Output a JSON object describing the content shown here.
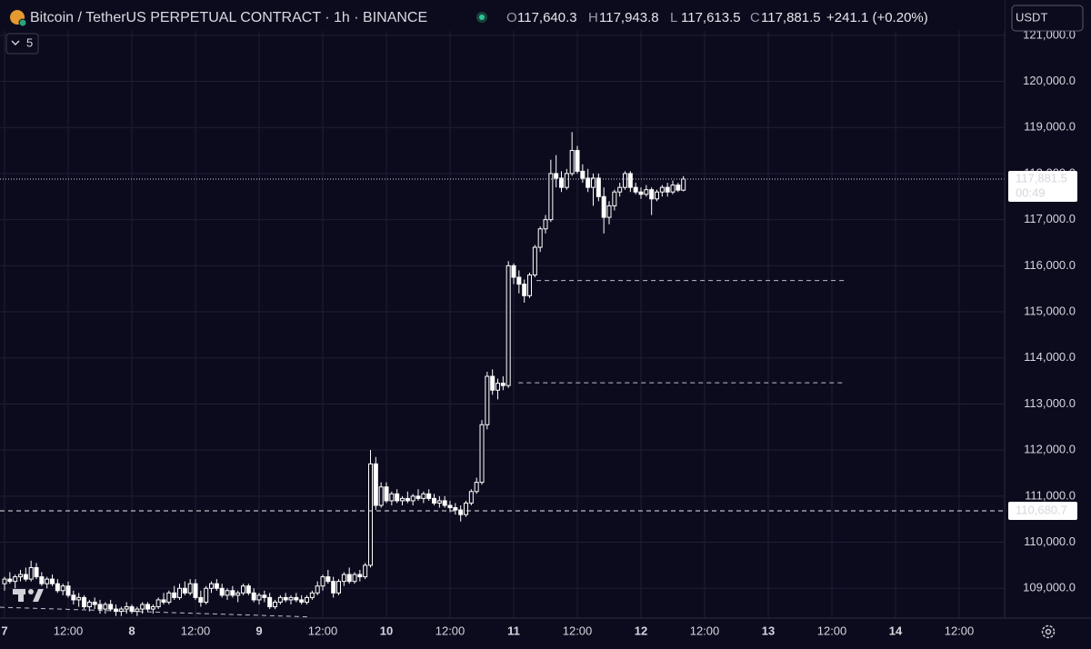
{
  "chart_data": {
    "type": "candlestick",
    "title": "Bitcoin / TetherUS PERPETUAL CONTRACT · 1h · BINANCE",
    "ohlc_header": [
      {
        "label": "O",
        "value": "117,640.3"
      },
      {
        "label": "H",
        "value": "117,943.8"
      },
      {
        "label": "L",
        "value": "117,613.5"
      },
      {
        "label": "C",
        "value": "117,881.5"
      }
    ],
    "change": "+241.1 (+0.20%)",
    "currency": "USDT",
    "indicator_count": "5",
    "countdown": "00:49",
    "last_price": {
      "value": 117881.5,
      "label": "117,881.5"
    },
    "alert_line": {
      "value": 110680.7,
      "label": "110,680.7"
    },
    "price_lines": [
      {
        "price": 115680,
        "from": 100.3,
        "to": 158.6
      },
      {
        "price": 113460,
        "from": 96.9,
        "to": 158.2
      }
    ],
    "trend_line": {
      "x": [
        -0.86,
        57.4
      ],
      "y": [
        108590,
        108380
      ]
    },
    "x": [
      0,
      1,
      2,
      3,
      4,
      5,
      6,
      7,
      8,
      9,
      10,
      11,
      12,
      13,
      14,
      15,
      16,
      17,
      18,
      19,
      20,
      21,
      22,
      23,
      24,
      25,
      26,
      27,
      28,
      29,
      30,
      31,
      32,
      33,
      34,
      35,
      36,
      37,
      38,
      39,
      40,
      41,
      42,
      43,
      44,
      45,
      46,
      47,
      48,
      49,
      50,
      51,
      52,
      53,
      54,
      55,
      56,
      57,
      58,
      59,
      60,
      61,
      62,
      63,
      64,
      65,
      66,
      67,
      68,
      69,
      70,
      71,
      72,
      73,
      74,
      75,
      76,
      77,
      78,
      79,
      80,
      81,
      82,
      83,
      84,
      85,
      86,
      87,
      88,
      89,
      90,
      91,
      92,
      93,
      94,
      95,
      96,
      97,
      98,
      99,
      100,
      101,
      102,
      103,
      104,
      105,
      106,
      107,
      108,
      109,
      110,
      111,
      112,
      113,
      114,
      115,
      116,
      117,
      118,
      119,
      120,
      121,
      122,
      123,
      124,
      125,
      126,
      127,
      128
    ],
    "ohlc": [
      [
        109100,
        109250,
        108950,
        109200
      ],
      [
        109200,
        109350,
        109100,
        109150
      ],
      [
        109150,
        109300,
        109000,
        109250
      ],
      [
        109250,
        109400,
        109150,
        109300
      ],
      [
        109300,
        109450,
        109150,
        109200
      ],
      [
        109200,
        109600,
        109150,
        109450
      ],
      [
        109450,
        109550,
        109200,
        109250
      ],
      [
        109250,
        109350,
        109050,
        109100
      ],
      [
        109100,
        109250,
        109000,
        109200
      ],
      [
        109200,
        109300,
        109050,
        109100
      ],
      [
        109100,
        109200,
        108900,
        108950
      ],
      [
        108950,
        109100,
        108850,
        109050
      ],
      [
        109050,
        109150,
        108800,
        108850
      ],
      [
        108850,
        108950,
        108650,
        108750
      ],
      [
        108750,
        108900,
        108600,
        108800
      ],
      [
        108800,
        108850,
        108550,
        108600
      ],
      [
        108600,
        108750,
        108500,
        108700
      ],
      [
        108700,
        108800,
        108550,
        108650
      ],
      [
        108650,
        108750,
        108450,
        108550
      ],
      [
        108550,
        108700,
        108450,
        108650
      ],
      [
        108650,
        108750,
        108500,
        108550
      ],
      [
        108550,
        108650,
        108400,
        108500
      ],
      [
        108500,
        108600,
        108400,
        108550
      ],
      [
        108550,
        108700,
        108450,
        108600
      ],
      [
        108600,
        108650,
        108450,
        108500
      ],
      [
        108500,
        108600,
        108400,
        108550
      ],
      [
        108550,
        108700,
        108450,
        108650
      ],
      [
        108650,
        108700,
        108500,
        108550
      ],
      [
        108550,
        108650,
        108450,
        108600
      ],
      [
        108600,
        108800,
        108550,
        108750
      ],
      [
        108750,
        108900,
        108650,
        108700
      ],
      [
        108700,
        108950,
        108650,
        108900
      ],
      [
        108900,
        109050,
        108750,
        108800
      ],
      [
        108800,
        109100,
        108750,
        109000
      ],
      [
        109000,
        109150,
        108850,
        108900
      ],
      [
        108900,
        109200,
        108850,
        109100
      ],
      [
        109100,
        109200,
        108750,
        108800
      ],
      [
        108800,
        108950,
        108600,
        108700
      ],
      [
        108700,
        109050,
        108650,
        109000
      ],
      [
        109000,
        109150,
        108900,
        109100
      ],
      [
        109100,
        109200,
        108950,
        109000
      ],
      [
        109000,
        109100,
        108800,
        108850
      ],
      [
        108850,
        109000,
        108750,
        108950
      ],
      [
        108950,
        109050,
        108800,
        108850
      ],
      [
        108850,
        108950,
        108700,
        108900
      ],
      [
        108900,
        109100,
        108850,
        109050
      ],
      [
        109050,
        109100,
        108850,
        108900
      ],
      [
        108900,
        109000,
        108700,
        108750
      ],
      [
        108750,
        108900,
        108650,
        108850
      ],
      [
        108850,
        108950,
        108700,
        108800
      ],
      [
        108800,
        108900,
        108550,
        108600
      ],
      [
        108600,
        108750,
        108550,
        108700
      ],
      [
        108700,
        108850,
        108650,
        108800
      ],
      [
        108800,
        108900,
        108700,
        108750
      ],
      [
        108750,
        108850,
        108650,
        108800
      ],
      [
        108800,
        108900,
        108700,
        108750
      ],
      [
        108750,
        108850,
        108650,
        108700
      ],
      [
        108700,
        108850,
        108650,
        108800
      ],
      [
        108800,
        108950,
        108750,
        108900
      ],
      [
        108900,
        109150,
        108850,
        109050
      ],
      [
        109050,
        109300,
        108950,
        109250
      ],
      [
        109250,
        109400,
        109100,
        109150
      ],
      [
        109150,
        109250,
        108800,
        108900
      ],
      [
        108900,
        109200,
        108850,
        109150
      ],
      [
        109150,
        109350,
        109050,
        109300
      ],
      [
        109300,
        109450,
        109100,
        109150
      ],
      [
        109150,
        109350,
        109100,
        109300
      ],
      [
        109300,
        109400,
        109150,
        109250
      ],
      [
        109250,
        109550,
        109200,
        109500
      ],
      [
        109500,
        112000,
        109450,
        111700
      ],
      [
        111700,
        111850,
        110700,
        110800
      ],
      [
        110800,
        111300,
        110750,
        111200
      ],
      [
        111200,
        111300,
        110850,
        110900
      ],
      [
        110900,
        111100,
        110800,
        111050
      ],
      [
        111050,
        111150,
        110850,
        110900
      ],
      [
        110900,
        111000,
        110800,
        110950
      ],
      [
        110950,
        111100,
        110850,
        110900
      ],
      [
        110900,
        111050,
        110800,
        111000
      ],
      [
        111000,
        111150,
        110900,
        110950
      ],
      [
        110950,
        111100,
        110850,
        111050
      ],
      [
        111050,
        111150,
        110900,
        110950
      ],
      [
        110950,
        111050,
        110800,
        110850
      ],
      [
        110850,
        111000,
        110750,
        110900
      ],
      [
        110900,
        111000,
        110750,
        110800
      ],
      [
        110800,
        110900,
        110650,
        110750
      ],
      [
        110750,
        110850,
        110600,
        110700
      ],
      [
        110700,
        110800,
        110450,
        110600
      ],
      [
        110600,
        110900,
        110550,
        110850
      ],
      [
        110850,
        111150,
        110800,
        111100
      ],
      [
        111100,
        111400,
        111050,
        111300
      ],
      [
        111300,
        112650,
        111250,
        112550
      ],
      [
        112550,
        113700,
        112450,
        113600
      ],
      [
        113600,
        113750,
        113200,
        113300
      ],
      [
        113300,
        113550,
        113100,
        113450
      ],
      [
        113450,
        113600,
        113300,
        113400
      ],
      [
        113400,
        116100,
        113350,
        116000
      ],
      [
        116000,
        116050,
        115600,
        115750
      ],
      [
        115750,
        115900,
        115400,
        115600
      ],
      [
        115600,
        115700,
        115200,
        115350
      ],
      [
        115350,
        115850,
        115300,
        115800
      ],
      [
        115800,
        116450,
        115750,
        116400
      ],
      [
        116400,
        116850,
        116300,
        116800
      ],
      [
        116800,
        117100,
        116700,
        117000
      ],
      [
        117000,
        118300,
        116950,
        118000
      ],
      [
        118000,
        118400,
        117700,
        117900
      ],
      [
        117900,
        118050,
        117600,
        117700
      ],
      [
        117700,
        118100,
        117650,
        118000
      ],
      [
        118000,
        118900,
        117950,
        118500
      ],
      [
        118500,
        118600,
        118000,
        118050
      ],
      [
        118050,
        118200,
        117800,
        117900
      ],
      [
        117900,
        118100,
        117600,
        117700
      ],
      [
        117700,
        118000,
        117300,
        117900
      ],
      [
        117900,
        118000,
        117400,
        117500
      ],
      [
        117500,
        117700,
        116700,
        117050
      ],
      [
        117050,
        117400,
        116900,
        117300
      ],
      [
        117300,
        117650,
        117200,
        117600
      ],
      [
        117600,
        117800,
        117500,
        117700
      ],
      [
        117700,
        118050,
        117650,
        118000
      ],
      [
        118000,
        118050,
        117600,
        117700
      ],
      [
        117700,
        117800,
        117550,
        117600
      ],
      [
        117600,
        117700,
        117450,
        117550
      ],
      [
        117550,
        117750,
        117500,
        117650
      ],
      [
        117650,
        117700,
        117100,
        117450
      ],
      [
        117450,
        117650,
        117400,
        117600
      ],
      [
        117600,
        117750,
        117500,
        117700
      ],
      [
        117700,
        117800,
        117500,
        117600
      ],
      [
        117600,
        117850,
        117550,
        117750
      ],
      [
        117750,
        117800,
        117600,
        117640.3
      ],
      [
        117640.3,
        117943.8,
        117613.5,
        117881.5
      ]
    ],
    "color": "#ffffff",
    "xlim": [
      -0.86,
      188.57
    ],
    "xticks": [
      {
        "value": 0,
        "label": "7"
      },
      {
        "value": 12,
        "label": "12:00"
      },
      {
        "value": 24,
        "label": "8"
      },
      {
        "value": 36,
        "label": "12:00"
      },
      {
        "value": 48,
        "label": "9"
      },
      {
        "value": 60,
        "label": "12:00"
      },
      {
        "value": 72,
        "label": "10"
      },
      {
        "value": 84,
        "label": "12:00"
      },
      {
        "value": 96,
        "label": "11"
      },
      {
        "value": 108,
        "label": "12:00"
      },
      {
        "value": 120,
        "label": "12"
      },
      {
        "value": 132,
        "label": "12:00"
      },
      {
        "value": 144,
        "label": "13"
      },
      {
        "value": 156,
        "label": "12:00"
      },
      {
        "value": 168,
        "label": "14"
      },
      {
        "value": 180,
        "label": "12:00"
      }
    ],
    "ylim": [
      108354,
      121766
    ],
    "yticks": [
      {
        "value": 109000,
        "label": "109,000.0"
      },
      {
        "value": 110000,
        "label": "110,000.0"
      },
      {
        "value": 111000,
        "label": "111,000.0"
      },
      {
        "value": 112000,
        "label": "112,000.0"
      },
      {
        "value": 113000,
        "label": "113,000.0"
      },
      {
        "value": 114000,
        "label": "114,000.0"
      },
      {
        "value": 115000,
        "label": "115,000.0"
      },
      {
        "value": 116000,
        "label": "116,000.0"
      },
      {
        "value": 117000,
        "label": "117,000.0"
      },
      {
        "value": 118000,
        "label": "118,000.0"
      },
      {
        "value": 119000,
        "label": "119,000.0"
      },
      {
        "value": 120000,
        "label": "120,000.0"
      },
      {
        "value": 121000,
        "label": "121,000.0"
      }
    ],
    "grid": true
  }
}
